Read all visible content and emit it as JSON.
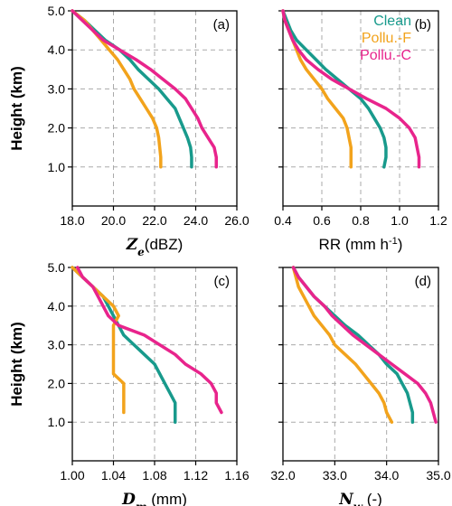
{
  "legend": {
    "loc": "upper right",
    "panel": 1,
    "entries": [
      {
        "name": "Clean",
        "color": "#189a8c"
      },
      {
        "name": "Pollu.-F",
        "color": "#f2a31c"
      },
      {
        "name": "Pollu.-C",
        "color": "#e8248c"
      }
    ]
  },
  "chart_data": [
    {
      "type": "line",
      "panel_label": "(a)",
      "ylabel": "Height (km)",
      "xlabel": [
        {
          "text": "Z",
          "italic": true
        },
        {
          "text": "e",
          "italic": true,
          "sub": true
        },
        {
          "text": "(dBZ)"
        }
      ],
      "y": [
        1.0,
        1.25,
        1.5,
        1.75,
        2.0,
        2.25,
        2.5,
        2.75,
        3.0,
        3.25,
        3.5,
        3.75,
        4.0,
        4.25,
        4.5,
        4.75,
        5.0
      ],
      "series": [
        {
          "values": [
            23.8,
            23.8,
            23.75,
            23.6,
            23.4,
            23.2,
            23.0,
            22.6,
            22.2,
            21.7,
            21.2,
            20.8,
            20.3,
            19.6,
            19.1,
            18.6,
            18.0
          ]
        },
        {
          "values": [
            22.3,
            22.3,
            22.25,
            22.2,
            22.1,
            21.9,
            21.6,
            21.3,
            21.0,
            20.8,
            20.5,
            20.2,
            19.8,
            19.4,
            19.0,
            18.6,
            18.0
          ]
        },
        {
          "values": [
            25.0,
            25.0,
            24.9,
            24.6,
            24.3,
            24.1,
            23.8,
            23.5,
            23.0,
            22.4,
            21.8,
            21.1,
            20.3,
            19.5,
            19.0,
            18.5,
            18.0
          ]
        }
      ],
      "xlim": [
        18,
        26
      ],
      "ylim": [
        0,
        5
      ],
      "grid": true,
      "ytick_labels": true,
      "xticks": [
        {
          "value": 18,
          "label": "18.0"
        },
        {
          "value": 20,
          "label": "20.0"
        },
        {
          "value": 22,
          "label": "22.0"
        },
        {
          "value": 24,
          "label": "24.0"
        },
        {
          "value": 26,
          "label": "26.0"
        }
      ],
      "yticks": [
        {
          "value": 1,
          "label": "1.0"
        },
        {
          "value": 2,
          "label": "2.0"
        },
        {
          "value": 3,
          "label": "3.0"
        },
        {
          "value": 4,
          "label": "4.0"
        },
        {
          "value": 5,
          "label": "5.0"
        }
      ]
    },
    {
      "type": "line",
      "panel_label": "(b)",
      "xlabel": [
        {
          "text": "RR (mm h"
        },
        {
          "text": "-1",
          "sup": true
        },
        {
          "text": ")"
        }
      ],
      "y": [
        1.0,
        1.25,
        1.5,
        1.75,
        2.0,
        2.25,
        2.5,
        2.75,
        3.0,
        3.25,
        3.5,
        3.75,
        4.0,
        4.25,
        4.5,
        4.75,
        5.0
      ],
      "series": [
        {
          "values": [
            0.92,
            0.93,
            0.93,
            0.92,
            0.9,
            0.87,
            0.84,
            0.8,
            0.74,
            0.68,
            0.62,
            0.57,
            0.52,
            0.47,
            0.44,
            0.42,
            0.4
          ]
        },
        {
          "values": [
            0.75,
            0.75,
            0.75,
            0.74,
            0.73,
            0.71,
            0.67,
            0.63,
            0.6,
            0.56,
            0.52,
            0.49,
            0.47,
            0.45,
            0.43,
            0.41,
            0.4
          ]
        },
        {
          "values": [
            1.1,
            1.1,
            1.09,
            1.08,
            1.05,
            1.0,
            0.93,
            0.83,
            0.74,
            0.65,
            0.58,
            0.52,
            0.48,
            0.45,
            0.43,
            0.41,
            0.4
          ]
        }
      ],
      "xlim": [
        0.4,
        1.2
      ],
      "ylim": [
        0,
        5
      ],
      "grid": true,
      "ytick_labels": false,
      "xticks": [
        0.4,
        0.6,
        0.8,
        {
          "value": 1,
          "label": "1.0"
        },
        1.2
      ],
      "yticks": [
        1,
        2,
        3,
        4,
        5
      ]
    },
    {
      "type": "line",
      "panel_label": "(c)",
      "ylabel": "Height (km)",
      "xlabel": [
        {
          "text": "D",
          "italic": true
        },
        {
          "text": "m",
          "italic": true,
          "sub": true
        },
        {
          "text": " (mm)"
        }
      ],
      "y": [
        1.0,
        1.25,
        1.5,
        1.75,
        2.0,
        2.25,
        2.5,
        2.75,
        3.0,
        3.25,
        3.5,
        3.75,
        4.0,
        4.25,
        4.5,
        4.75,
        5.0
      ],
      "series": [
        {
          "values": [
            1.1,
            1.1,
            1.1,
            1.095,
            1.09,
            1.085,
            1.08,
            1.07,
            1.06,
            1.05,
            1.045,
            1.04,
            1.035,
            1.03,
            1.02,
            1.01,
            1.0
          ]
        },
        {
          "values": [
            null,
            1.05,
            1.05,
            1.05,
            1.05,
            1.04,
            1.04,
            1.04,
            1.04,
            1.04,
            1.04,
            1.045,
            1.04,
            1.03,
            1.02,
            1.01,
            1.0
          ]
        },
        {
          "values": [
            null,
            1.145,
            1.14,
            1.14,
            1.135,
            1.125,
            1.11,
            1.1,
            1.085,
            1.07,
            1.045,
            1.035,
            1.03,
            1.025,
            1.02,
            1.01,
            1.005
          ]
        }
      ],
      "xlim": [
        1.0,
        1.16
      ],
      "ylim": [
        0,
        5
      ],
      "grid": true,
      "ytick_labels": true,
      "xticks": [
        {
          "value": 1,
          "label": "1.00"
        },
        1.04,
        1.08,
        1.12,
        1.16
      ],
      "yticks": [
        {
          "value": 1,
          "label": "1.0"
        },
        {
          "value": 2,
          "label": "2.0"
        },
        {
          "value": 3,
          "label": "3.0"
        },
        {
          "value": 4,
          "label": "4.0"
        },
        {
          "value": 5,
          "label": "5.0"
        }
      ]
    },
    {
      "type": "line",
      "panel_label": "(d)",
      "xlabel": [
        {
          "text": "N",
          "italic": true
        },
        {
          "text": "w",
          "italic": true,
          "sub": true
        },
        {
          "text": " (-)"
        }
      ],
      "y": [
        1.0,
        1.25,
        1.5,
        1.75,
        2.0,
        2.25,
        2.5,
        2.75,
        3.0,
        3.25,
        3.5,
        3.75,
        4.0,
        4.25,
        4.5,
        4.75,
        5.0
      ],
      "series": [
        {
          "values": [
            34.5,
            34.5,
            34.45,
            34.4,
            34.3,
            34.2,
            34.0,
            33.85,
            33.65,
            33.45,
            33.2,
            33.0,
            32.8,
            32.6,
            32.45,
            32.3,
            32.2
          ]
        },
        {
          "values": [
            34.1,
            34.0,
            33.95,
            33.85,
            33.7,
            33.55,
            33.4,
            33.2,
            33.0,
            32.9,
            32.75,
            32.6,
            32.5,
            32.4,
            32.3,
            32.25,
            32.2
          ]
        },
        {
          "values": [
            34.95,
            34.9,
            34.85,
            34.75,
            34.6,
            34.35,
            34.1,
            33.85,
            33.6,
            33.35,
            33.15,
            32.95,
            32.8,
            32.6,
            32.45,
            32.3,
            32.2
          ]
        }
      ],
      "xlim": [
        32,
        35
      ],
      "ylim": [
        0,
        5
      ],
      "grid": true,
      "ytick_labels": false,
      "xticks": [
        {
          "value": 32,
          "label": "32.0"
        },
        {
          "value": 33,
          "label": "33.0"
        },
        {
          "value": 34,
          "label": "34.0"
        },
        {
          "value": 35,
          "label": "35.0"
        }
      ],
      "yticks": [
        1,
        2,
        3,
        4,
        5
      ]
    }
  ]
}
